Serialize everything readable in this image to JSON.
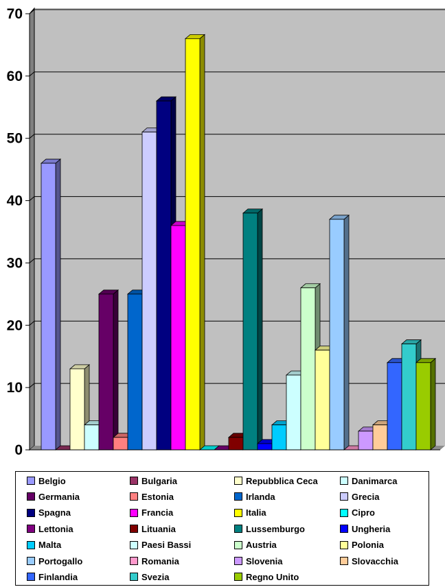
{
  "chart_data": {
    "type": "bar",
    "title": "",
    "xlabel": "",
    "ylabel": "",
    "ylim": [
      0,
      70
    ],
    "yticks": [
      0,
      10,
      20,
      30,
      40,
      50,
      60,
      70
    ],
    "grid": true,
    "legend_placement": "bottom",
    "categories": [
      "Belgio",
      "Bulgaria",
      "Repubblica Ceca",
      "Danimarca",
      "Germania",
      "Estonia",
      "Irlanda",
      "Grecia",
      "Spagna",
      "Francia",
      "Italia",
      "Cipro",
      "Lettonia",
      "Lituania",
      "Lussemburgo",
      "Ungheria",
      "Malta",
      "Paesi Bassi",
      "Austria",
      "Polonia",
      "Portogallo",
      "Romania",
      "Slovenia",
      "Slovacchia",
      "Finlandia",
      "Svezia",
      "Regno Unito"
    ],
    "series": [
      {
        "name": "Belgio",
        "value": 46,
        "color": "#9999ff"
      },
      {
        "name": "Bulgaria",
        "value": 0,
        "color": "#993366"
      },
      {
        "name": "Repubblica Ceca",
        "value": 13,
        "color": "#ffffcc"
      },
      {
        "name": "Danimarca",
        "value": 4,
        "color": "#ccffff"
      },
      {
        "name": "Germania",
        "value": 25,
        "color": "#660066"
      },
      {
        "name": "Estonia",
        "value": 2,
        "color": "#ff8080"
      },
      {
        "name": "Irlanda",
        "value": 25,
        "color": "#0066cc"
      },
      {
        "name": "Grecia",
        "value": 51,
        "color": "#ccccff"
      },
      {
        "name": "Spagna",
        "value": 56,
        "color": "#000080"
      },
      {
        "name": "Francia",
        "value": 36,
        "color": "#ff00ff"
      },
      {
        "name": "Italia",
        "value": 66,
        "color": "#ffff00"
      },
      {
        "name": "Cipro",
        "value": 0,
        "color": "#00ffff"
      },
      {
        "name": "Lettonia",
        "value": 0,
        "color": "#800080"
      },
      {
        "name": "Lituania",
        "value": 2,
        "color": "#800000"
      },
      {
        "name": "Lussemburgo",
        "value": 38,
        "color": "#008080"
      },
      {
        "name": "Ungheria",
        "value": 1,
        "color": "#0000ff"
      },
      {
        "name": "Malta",
        "value": 4,
        "color": "#00ccff"
      },
      {
        "name": "Paesi Bassi",
        "value": 12,
        "color": "#ccffff"
      },
      {
        "name": "Austria",
        "value": 26,
        "color": "#ccffcc"
      },
      {
        "name": "Polonia",
        "value": 16,
        "color": "#ffff99"
      },
      {
        "name": "Portogallo",
        "value": 37,
        "color": "#99ccff"
      },
      {
        "name": "Romania",
        "value": 0,
        "color": "#ff99cc"
      },
      {
        "name": "Slovenia",
        "value": 3,
        "color": "#cc99ff"
      },
      {
        "name": "Slovacchia",
        "value": 4,
        "color": "#ffcc99"
      },
      {
        "name": "Finlandia",
        "value": 14,
        "color": "#3366ff"
      },
      {
        "name": "Svezia",
        "value": 17,
        "color": "#33cccc"
      },
      {
        "name": "Regno Unito",
        "value": 14,
        "color": "#99cc00"
      }
    ]
  }
}
